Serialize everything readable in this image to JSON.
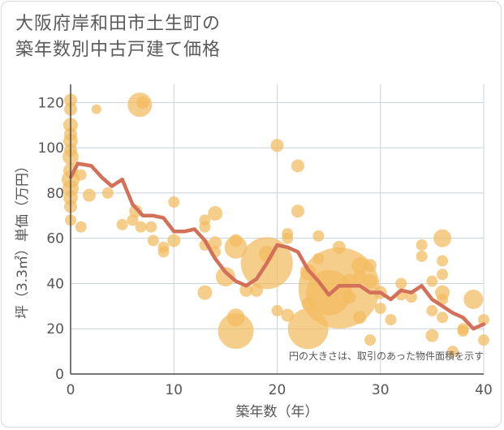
{
  "title_lines": [
    "大阪府岸和田市土生町の",
    "築年数別中古戸建て価格"
  ],
  "chart_data": {
    "type": "scatter",
    "title": "大阪府岸和田市土生町の築年数別中古戸建て価格",
    "xlabel": "築年数（年）",
    "ylabel": "坪（3.3㎡）単価（万円）",
    "xlim": [
      0,
      40
    ],
    "ylim": [
      0,
      128
    ],
    "xticks": [
      0,
      10,
      20,
      30,
      40
    ],
    "yticks": [
      0,
      20,
      40,
      60,
      80,
      100,
      120
    ],
    "note": "円の大きさは、取引のあった物件面積を示す",
    "colors": {
      "bubble": "#f2bb5e",
      "line": "#d2705a",
      "grid": "#c8d3dc"
    },
    "bubbles": [
      {
        "x": 0,
        "y": 121,
        "s": 8
      },
      {
        "x": 0,
        "y": 117,
        "s": 8
      },
      {
        "x": 0,
        "y": 110,
        "s": 9
      },
      {
        "x": 0,
        "y": 106,
        "s": 8
      },
      {
        "x": 0,
        "y": 103,
        "s": 9
      },
      {
        "x": 0,
        "y": 99,
        "s": 8
      },
      {
        "x": 0,
        "y": 96,
        "s": 10
      },
      {
        "x": 0,
        "y": 90,
        "s": 9
      },
      {
        "x": 0,
        "y": 86,
        "s": 11
      },
      {
        "x": 0,
        "y": 82,
        "s": 10
      },
      {
        "x": 0,
        "y": 78,
        "s": 9
      },
      {
        "x": 0,
        "y": 74,
        "s": 8
      },
      {
        "x": 0,
        "y": 68,
        "s": 7
      },
      {
        "x": 1,
        "y": 88,
        "s": 7
      },
      {
        "x": 1,
        "y": 65,
        "s": 7
      },
      {
        "x": 2.5,
        "y": 117,
        "s": 6
      },
      {
        "x": 1.8,
        "y": 79,
        "s": 8
      },
      {
        "x": 3.6,
        "y": 80,
        "s": 7
      },
      {
        "x": 5,
        "y": 66,
        "s": 7
      },
      {
        "x": 6,
        "y": 68,
        "s": 7
      },
      {
        "x": 6.3,
        "y": 72,
        "s": 8
      },
      {
        "x": 7,
        "y": 120,
        "s": 8
      },
      {
        "x": 6.7,
        "y": 119,
        "s": 15
      },
      {
        "x": 6.8,
        "y": 65,
        "s": 7
      },
      {
        "x": 7.8,
        "y": 65,
        "s": 7
      },
      {
        "x": 8,
        "y": 59,
        "s": 7
      },
      {
        "x": 9,
        "y": 56,
        "s": 7
      },
      {
        "x": 9,
        "y": 54,
        "s": 7
      },
      {
        "x": 10,
        "y": 76,
        "s": 7
      },
      {
        "x": 10,
        "y": 59,
        "s": 8
      },
      {
        "x": 13,
        "y": 68,
        "s": 7
      },
      {
        "x": 13,
        "y": 65,
        "s": 7
      },
      {
        "x": 13,
        "y": 57,
        "s": 7
      },
      {
        "x": 14,
        "y": 71,
        "s": 9
      },
      {
        "x": 14,
        "y": 58,
        "s": 8
      },
      {
        "x": 14,
        "y": 54,
        "s": 7
      },
      {
        "x": 13,
        "y": 36,
        "s": 9
      },
      {
        "x": 15,
        "y": 43,
        "s": 12
      },
      {
        "x": 16,
        "y": 59,
        "s": 8
      },
      {
        "x": 16,
        "y": 56,
        "s": 14
      },
      {
        "x": 16,
        "y": 25,
        "s": 11
      },
      {
        "x": 16,
        "y": 19,
        "s": 22
      },
      {
        "x": 17,
        "y": 37,
        "s": 8
      },
      {
        "x": 18,
        "y": 37,
        "s": 8
      },
      {
        "x": 19,
        "y": 49,
        "s": 32
      },
      {
        "x": 19,
        "y": 53,
        "s": 10
      },
      {
        "x": 20,
        "y": 101,
        "s": 8
      },
      {
        "x": 20,
        "y": 28,
        "s": 7
      },
      {
        "x": 21,
        "y": 62,
        "s": 7
      },
      {
        "x": 21,
        "y": 60,
        "s": 7
      },
      {
        "x": 21,
        "y": 26,
        "s": 8
      },
      {
        "x": 22,
        "y": 92,
        "s": 8
      },
      {
        "x": 22,
        "y": 72,
        "s": 8
      },
      {
        "x": 23,
        "y": 31,
        "s": 8
      },
      {
        "x": 23,
        "y": 20,
        "s": 25
      },
      {
        "x": 24,
        "y": 61,
        "s": 7
      },
      {
        "x": 24,
        "y": 51,
        "s": 7
      },
      {
        "x": 23,
        "y": 45,
        "s": 10
      },
      {
        "x": 25,
        "y": 36,
        "s": 28
      },
      {
        "x": 26,
        "y": 38,
        "s": 50
      },
      {
        "x": 26,
        "y": 56,
        "s": 8
      },
      {
        "x": 27,
        "y": 41,
        "s": 9
      },
      {
        "x": 27,
        "y": 34,
        "s": 8
      },
      {
        "x": 28,
        "y": 48,
        "s": 10
      },
      {
        "x": 28,
        "y": 43,
        "s": 8
      },
      {
        "x": 28,
        "y": 25,
        "s": 8
      },
      {
        "x": 29,
        "y": 48,
        "s": 8
      },
      {
        "x": 29,
        "y": 41,
        "s": 9
      },
      {
        "x": 29,
        "y": 15,
        "s": 7
      },
      {
        "x": 30,
        "y": 36,
        "s": 8
      },
      {
        "x": 30,
        "y": 29,
        "s": 7
      },
      {
        "x": 31,
        "y": 24,
        "s": 7
      },
      {
        "x": 32,
        "y": 40,
        "s": 7
      },
      {
        "x": 32,
        "y": 35,
        "s": 7
      },
      {
        "x": 33,
        "y": 34,
        "s": 7
      },
      {
        "x": 34,
        "y": 57,
        "s": 7
      },
      {
        "x": 34,
        "y": 52,
        "s": 7
      },
      {
        "x": 35,
        "y": 41,
        "s": 7
      },
      {
        "x": 35,
        "y": 28,
        "s": 7
      },
      {
        "x": 35,
        "y": 17,
        "s": 8
      },
      {
        "x": 36,
        "y": 60,
        "s": 11
      },
      {
        "x": 36,
        "y": 50,
        "s": 7
      },
      {
        "x": 36,
        "y": 44,
        "s": 7
      },
      {
        "x": 36,
        "y": 36,
        "s": 9
      },
      {
        "x": 36,
        "y": 33,
        "s": 7
      },
      {
        "x": 36,
        "y": 25,
        "s": 7
      },
      {
        "x": 37,
        "y": 10,
        "s": 7
      },
      {
        "x": 38,
        "y": 20,
        "s": 7
      },
      {
        "x": 38,
        "y": 19,
        "s": 7
      },
      {
        "x": 39,
        "y": 33,
        "s": 12
      },
      {
        "x": 40,
        "y": 24,
        "s": 7
      },
      {
        "x": 40,
        "y": 15,
        "s": 7
      }
    ],
    "trend": {
      "x": [
        0,
        0.7,
        2,
        3,
        4,
        5,
        6,
        7,
        8,
        9,
        10,
        11,
        12,
        13,
        14,
        15,
        16,
        17,
        18,
        19,
        20,
        21,
        22,
        23,
        24,
        25,
        26,
        27,
        28,
        29,
        30,
        31,
        32,
        33,
        34,
        35,
        36,
        37,
        38,
        39,
        40
      ],
      "y": [
        87,
        93,
        92,
        87,
        83,
        86,
        75,
        70,
        70,
        69,
        63,
        63,
        64,
        59,
        51,
        45,
        41,
        39,
        42,
        49,
        57,
        56,
        54,
        46,
        41,
        35,
        39,
        39,
        39,
        36,
        36,
        33,
        37,
        36,
        39,
        33,
        30,
        27,
        25,
        20,
        22
      ]
    }
  }
}
